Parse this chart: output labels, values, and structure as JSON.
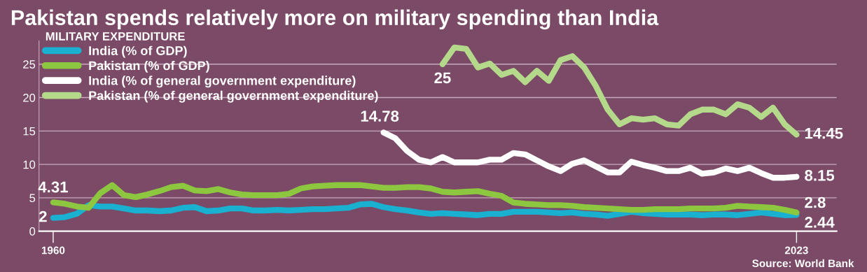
{
  "chart_data": {
    "type": "line",
    "title": "Pakistan spends relatively more on military spending than India",
    "legend_title": "MILITARY EXPENDITURE",
    "xlim": [
      1958.8,
      2026.4
    ],
    "xticks": [
      1960,
      2023
    ],
    "ylim": [
      0,
      28.5
    ],
    "yticks": [
      0,
      5,
      10,
      15,
      20,
      25
    ],
    "grid": "y",
    "legend": "top left",
    "series": [
      {
        "name": "India (% of GDP)",
        "color": "#1ab0d0",
        "x": [
          1960,
          1961,
          1962,
          1963,
          1964,
          1965,
          1966,
          1967,
          1968,
          1969,
          1970,
          1971,
          1972,
          1973,
          1974,
          1975,
          1976,
          1977,
          1978,
          1979,
          1980,
          1981,
          1982,
          1983,
          1984,
          1985,
          1986,
          1987,
          1988,
          1989,
          1990,
          1991,
          1992,
          1993,
          1994,
          1995,
          1996,
          1997,
          1998,
          1999,
          2000,
          2001,
          2002,
          2003,
          2004,
          2005,
          2006,
          2007,
          2008,
          2009,
          2010,
          2011,
          2012,
          2013,
          2014,
          2015,
          2016,
          2017,
          2018,
          2019,
          2020,
          2021,
          2022,
          2023
        ],
        "values": [
          2.0,
          2.1,
          2.6,
          3.9,
          3.7,
          3.7,
          3.4,
          3.1,
          3.1,
          3.0,
          3.1,
          3.5,
          3.6,
          3.0,
          3.1,
          3.4,
          3.4,
          3.1,
          3.1,
          3.2,
          3.1,
          3.2,
          3.3,
          3.3,
          3.4,
          3.5,
          4.0,
          4.1,
          3.6,
          3.3,
          3.1,
          2.8,
          2.6,
          2.7,
          2.6,
          2.5,
          2.4,
          2.6,
          2.6,
          2.9,
          2.9,
          2.9,
          2.8,
          2.7,
          2.8,
          2.6,
          2.5,
          2.3,
          2.6,
          2.9,
          2.7,
          2.6,
          2.5,
          2.5,
          2.5,
          2.4,
          2.5,
          2.5,
          2.4,
          2.6,
          2.8,
          2.6,
          2.4,
          2.44
        ]
      },
      {
        "name": "Pakistan (% of GDP)",
        "color": "#8dc63f",
        "x": [
          1960,
          1961,
          1962,
          1963,
          1964,
          1965,
          1966,
          1967,
          1968,
          1969,
          1970,
          1971,
          1972,
          1973,
          1974,
          1975,
          1976,
          1977,
          1978,
          1979,
          1980,
          1981,
          1982,
          1983,
          1984,
          1985,
          1986,
          1987,
          1988,
          1989,
          1990,
          1991,
          1992,
          1993,
          1994,
          1995,
          1996,
          1997,
          1998,
          1999,
          2000,
          2001,
          2002,
          2003,
          2004,
          2005,
          2006,
          2007,
          2008,
          2009,
          2010,
          2011,
          2012,
          2013,
          2014,
          2015,
          2016,
          2017,
          2018,
          2019,
          2020,
          2021,
          2022,
          2023
        ],
        "values": [
          4.31,
          4.1,
          3.7,
          3.5,
          5.7,
          6.9,
          5.4,
          5.1,
          5.5,
          6.0,
          6.6,
          6.8,
          6.1,
          6.0,
          6.3,
          5.8,
          5.5,
          5.4,
          5.4,
          5.4,
          5.6,
          6.4,
          6.7,
          6.8,
          6.9,
          6.9,
          6.9,
          6.7,
          6.5,
          6.5,
          6.6,
          6.6,
          6.4,
          5.9,
          5.8,
          5.9,
          6.0,
          5.6,
          5.3,
          4.3,
          4.1,
          4.0,
          3.9,
          3.9,
          3.8,
          3.6,
          3.5,
          3.4,
          3.3,
          3.2,
          3.2,
          3.3,
          3.3,
          3.3,
          3.4,
          3.4,
          3.4,
          3.5,
          3.8,
          3.7,
          3.6,
          3.5,
          3.2,
          2.8
        ]
      },
      {
        "name": "India (% of general government expenditure)",
        "color": "#ffffff",
        "x": [
          1988,
          1989,
          1990,
          1991,
          1992,
          1993,
          1994,
          1995,
          1996,
          1997,
          1998,
          1999,
          2000,
          2001,
          2002,
          2003,
          2004,
          2005,
          2006,
          2007,
          2008,
          2009,
          2010,
          2011,
          2012,
          2013,
          2014,
          2015,
          2016,
          2017,
          2018,
          2019,
          2020,
          2021,
          2022,
          2023
        ],
        "values": [
          14.78,
          13.9,
          12.0,
          10.7,
          10.3,
          11.1,
          10.3,
          10.3,
          10.3,
          10.7,
          10.7,
          11.7,
          11.5,
          10.6,
          9.7,
          9.0,
          10.1,
          10.6,
          9.7,
          8.8,
          8.8,
          10.4,
          9.9,
          9.5,
          9.0,
          9.0,
          9.5,
          8.6,
          8.8,
          9.4,
          9.0,
          9.5,
          8.7,
          8.0,
          8.0,
          8.15
        ]
      },
      {
        "name": "Pakistan (% of general government expenditure)",
        "color": "#b5d98a",
        "x": [
          1993,
          1994,
          1995,
          1996,
          1997,
          1998,
          1999,
          2000,
          2001,
          2002,
          2003,
          2004,
          2005,
          2006,
          2007,
          2008,
          2009,
          2010,
          2011,
          2012,
          2013,
          2014,
          2015,
          2016,
          2017,
          2018,
          2019,
          2020,
          2021,
          2022,
          2023
        ],
        "values": [
          25,
          27.5,
          27.3,
          24.5,
          25.1,
          23.4,
          24.0,
          22.3,
          24.0,
          22.5,
          25.6,
          26.2,
          24.5,
          21.7,
          18.2,
          16.0,
          16.9,
          16.7,
          16.9,
          16.0,
          15.8,
          17.5,
          18.2,
          18.2,
          17.5,
          19.0,
          18.5,
          17.1,
          18.5,
          16.0,
          14.45
        ]
      }
    ],
    "annotations": [
      {
        "text": "2",
        "x": 1960,
        "y": 2
      },
      {
        "text": "4.31",
        "x": 1960,
        "y": 4.31
      },
      {
        "text": "14.78",
        "x": 1988,
        "y": 14.78
      },
      {
        "text": "25",
        "x": 1993,
        "y": 25
      },
      {
        "text": "14.45",
        "x": 2023,
        "y": 14.45
      },
      {
        "text": "8.15",
        "x": 2023,
        "y": 8.15
      },
      {
        "text": "2.8",
        "x": 2023,
        "y": 2.8
      },
      {
        "text": "2.44",
        "x": 2023,
        "y": 2.44
      },
      "Source: World Bank"
    ]
  }
}
